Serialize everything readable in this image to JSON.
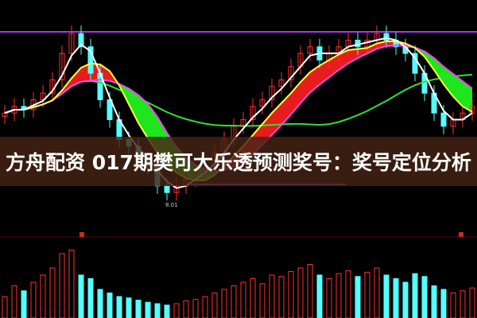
{
  "title": "方舟配资 017期樊可大乐透预测奖号：奖号定位分析",
  "chart_data": {
    "type": "candlestick",
    "annotation": "8.01",
    "closes": [
      9.4,
      9.5,
      9.45,
      9.6,
      9.7,
      9.9,
      10.3,
      10.6,
      10.4,
      10.0,
      9.6,
      9.3,
      9.0,
      8.9,
      8.7,
      8.6,
      8.3,
      8.2,
      8.3,
      8.4,
      8.5,
      8.6,
      8.8,
      9.0,
      9.2,
      9.3,
      9.5,
      9.6,
      9.8,
      9.9,
      10.1,
      10.3,
      10.4,
      10.2,
      10.3,
      10.4,
      10.5,
      10.4,
      10.5,
      10.6,
      10.5,
      10.4,
      10.3,
      10.0,
      9.7,
      9.4,
      9.2,
      9.3,
      9.4,
      9.5
    ],
    "volume": [
      30,
      45,
      38,
      50,
      60,
      70,
      90,
      95,
      60,
      55,
      40,
      35,
      30,
      28,
      25,
      22,
      20,
      18,
      20,
      24,
      26,
      30,
      35,
      40,
      45,
      50,
      55,
      48,
      60,
      58,
      65,
      70,
      75,
      60,
      55,
      62,
      66,
      58,
      64,
      70,
      60,
      55,
      50,
      62,
      58,
      45,
      40,
      35,
      38,
      42
    ],
    "colors": {
      "up": "#ff3030",
      "down": "#54ffff",
      "ma5": "#ffffff",
      "ma10": "#ffff40",
      "ma20": "#ff40ff",
      "ma60": "#30e030",
      "level": "#b030ff"
    }
  }
}
